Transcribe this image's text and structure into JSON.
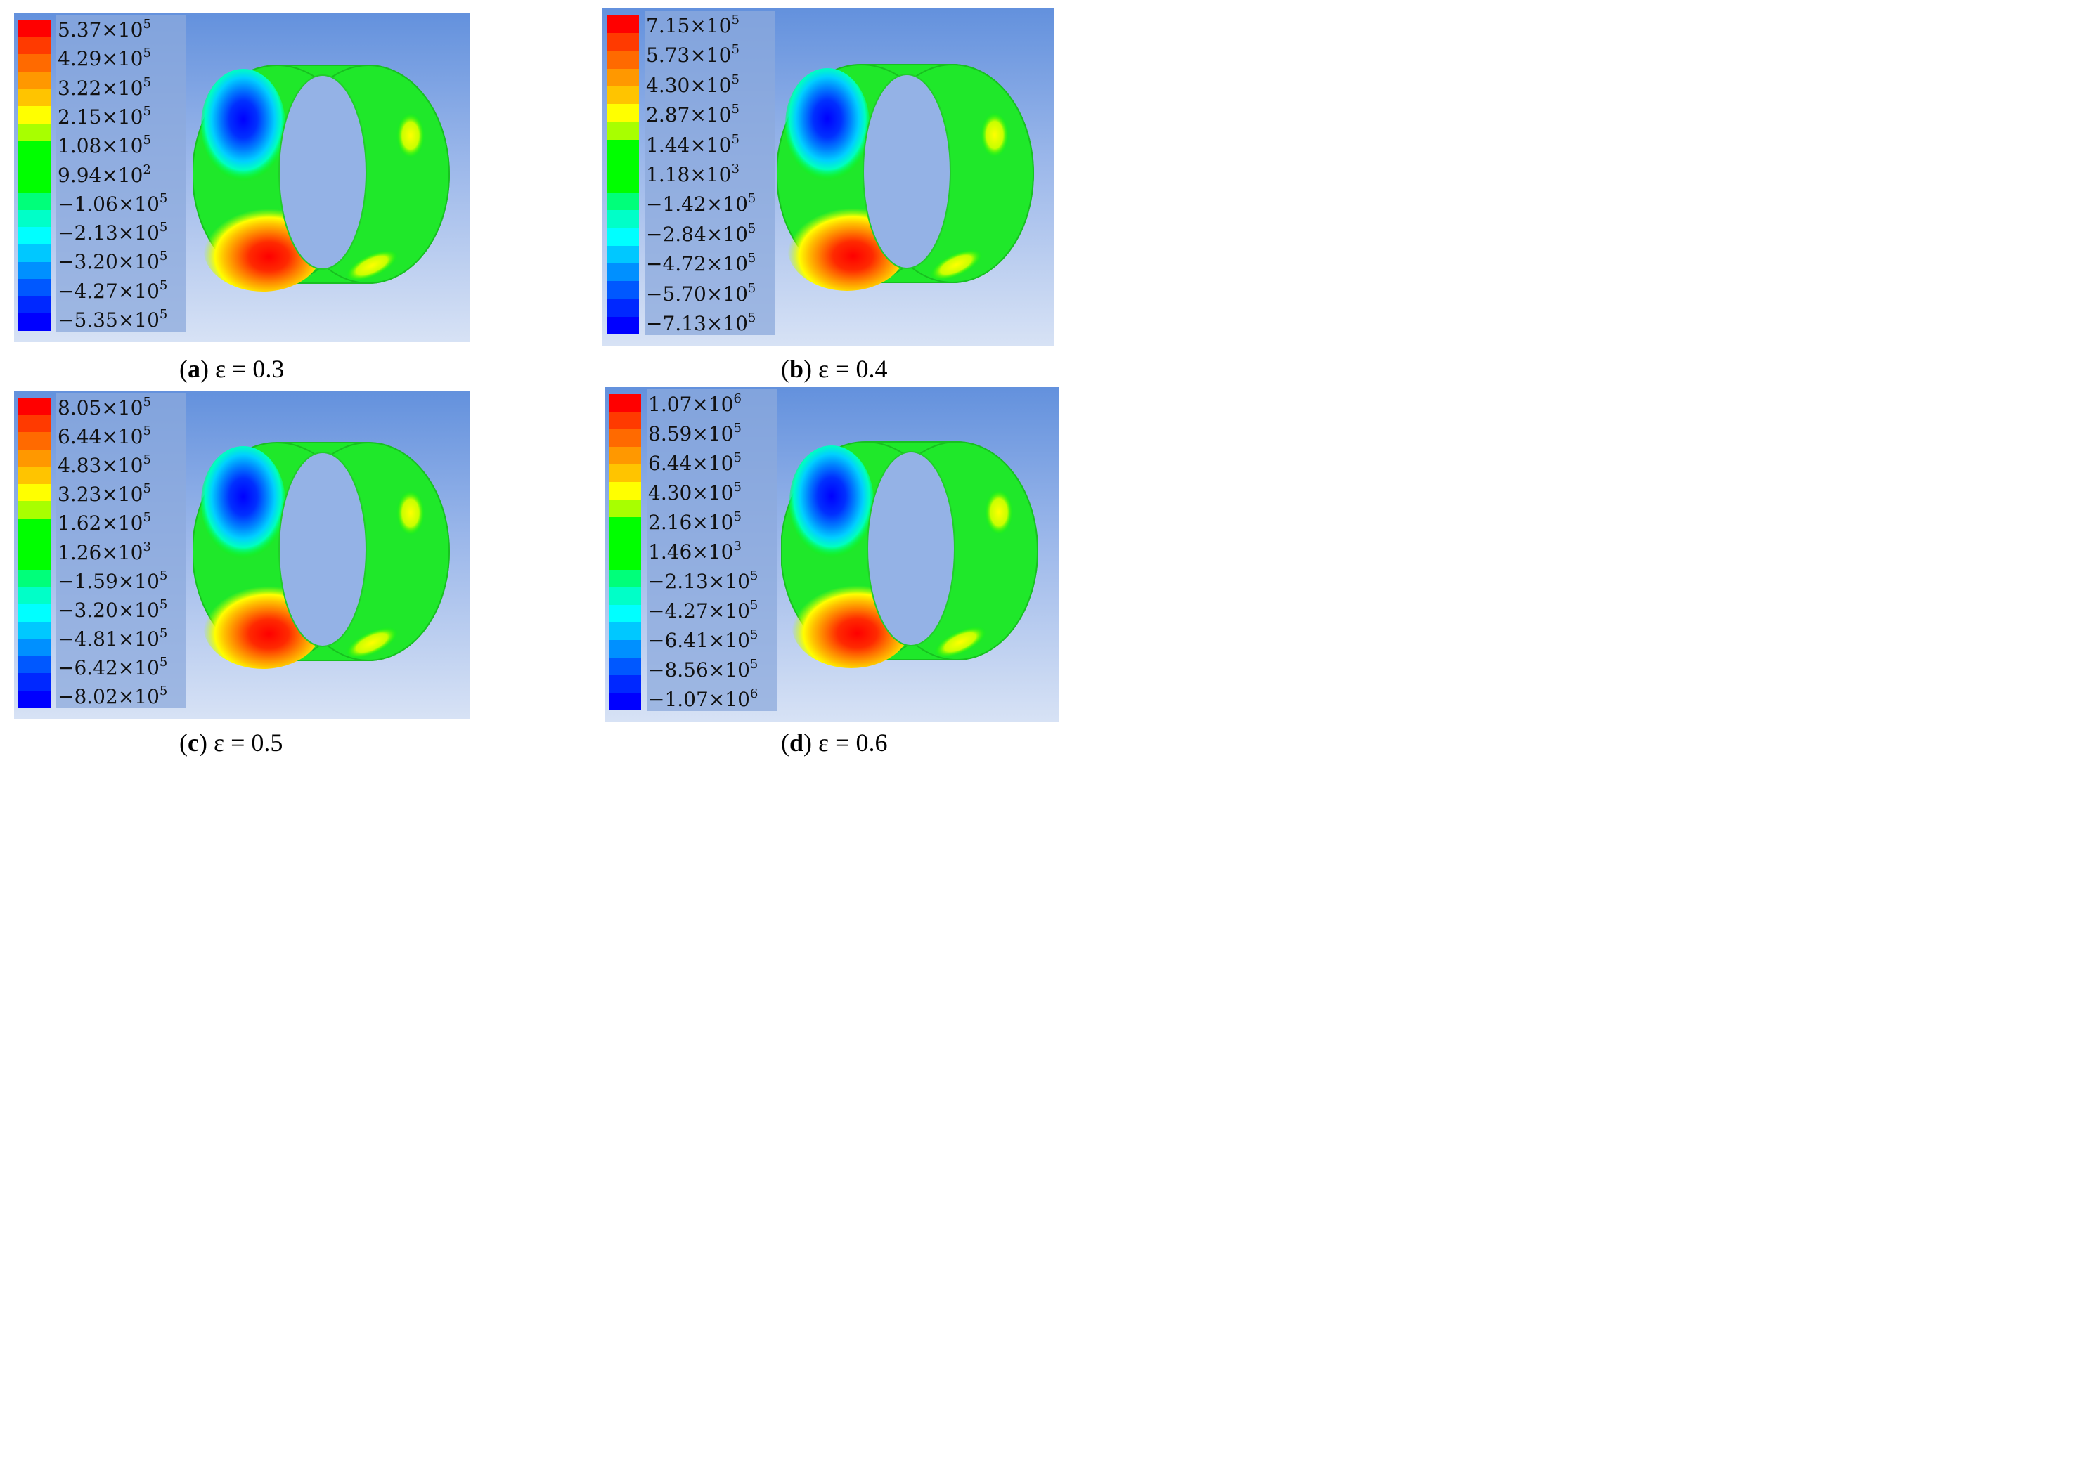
{
  "panels": [
    {
      "letter": "a",
      "eps": "ε = 0.3",
      "legend": [
        [
          "5.37",
          "5"
        ],
        [
          "4.29",
          "5"
        ],
        [
          "3.22",
          "5"
        ],
        [
          "2.15",
          "5"
        ],
        [
          "1.08",
          "5"
        ],
        [
          "9.94",
          "2"
        ],
        [
          "−1.06",
          "5"
        ],
        [
          "−2.13",
          "5"
        ],
        [
          "−3.20",
          "5"
        ],
        [
          "−4.27",
          "5"
        ],
        [
          "−5.35",
          "5"
        ]
      ]
    },
    {
      "letter": "b",
      "eps": "ε = 0.4",
      "legend": [
        [
          "7.15",
          "5"
        ],
        [
          "5.73",
          "5"
        ],
        [
          "4.30",
          "5"
        ],
        [
          "2.87",
          "5"
        ],
        [
          "1.44",
          "5"
        ],
        [
          "1.18",
          "3"
        ],
        [
          "−1.42",
          "5"
        ],
        [
          "−2.84",
          "5"
        ],
        [
          "−4.72",
          "5"
        ],
        [
          "−5.70",
          "5"
        ],
        [
          "−7.13",
          "5"
        ]
      ]
    },
    {
      "letter": "c",
      "eps": "ε = 0.5",
      "legend": [
        [
          "8.05",
          "5"
        ],
        [
          "6.44",
          "5"
        ],
        [
          "4.83",
          "5"
        ],
        [
          "3.23",
          "5"
        ],
        [
          "1.62",
          "5"
        ],
        [
          "1.26",
          "3"
        ],
        [
          "−1.59",
          "5"
        ],
        [
          "−3.20",
          "5"
        ],
        [
          "−4.81",
          "5"
        ],
        [
          "−6.42",
          "5"
        ],
        [
          "−8.02",
          "5"
        ]
      ]
    },
    {
      "letter": "d",
      "eps": "ε = 0.6",
      "legend": [
        [
          "1.07",
          "6"
        ],
        [
          "8.59",
          "5"
        ],
        [
          "6.44",
          "5"
        ],
        [
          "4.30",
          "5"
        ],
        [
          "2.16",
          "5"
        ],
        [
          "1.46",
          "3"
        ],
        [
          "−2.13",
          "5"
        ],
        [
          "−4.27",
          "5"
        ],
        [
          "−6.41",
          "5"
        ],
        [
          "−8.56",
          "5"
        ],
        [
          "−1.07",
          "6"
        ]
      ]
    }
  ],
  "colormap": [
    "#ff0000",
    "#ff3a00",
    "#ff6a00",
    "#ff9800",
    "#ffc400",
    "#ffff00",
    "#a8ff00",
    "#00ff00",
    "#00ff00",
    "#00ff00",
    "#00ff7a",
    "#00ffc8",
    "#00ffff",
    "#00c8ff",
    "#0090ff",
    "#0058ff",
    "#0028ff",
    "#0000ff"
  ],
  "times_sign": "×10"
}
